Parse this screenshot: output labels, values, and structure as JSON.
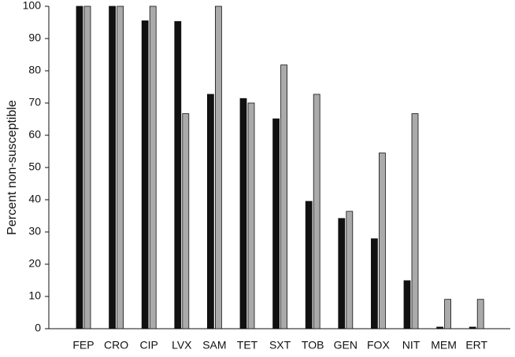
{
  "chart_data": {
    "type": "bar",
    "y_label": "Percent non-susceptible",
    "categories": [
      "FEP",
      "CRO",
      "CIP",
      "LVX",
      "SAM",
      "TET",
      "SXT",
      "TOB",
      "GEN",
      "FOX",
      "NIT",
      "MEM",
      "ERT"
    ],
    "series": [
      {
        "color": "#111111",
        "values": [
          100,
          100,
          95.5,
          95.3,
          72.7,
          71.4,
          65.1,
          39.5,
          34.2,
          27.9,
          14.9,
          0.5,
          0.5
        ]
      },
      {
        "color": "#aaaaaa",
        "values": [
          100,
          100,
          100,
          66.7,
          100,
          70,
          81.8,
          72.7,
          36.4,
          54.5,
          66.7,
          9.1,
          9.1
        ]
      }
    ],
    "ylim": [
      0,
      100
    ],
    "yticks": [
      0,
      10,
      20,
      30,
      40,
      50,
      60,
      70,
      80,
      90,
      100
    ],
    "grid": false
  }
}
